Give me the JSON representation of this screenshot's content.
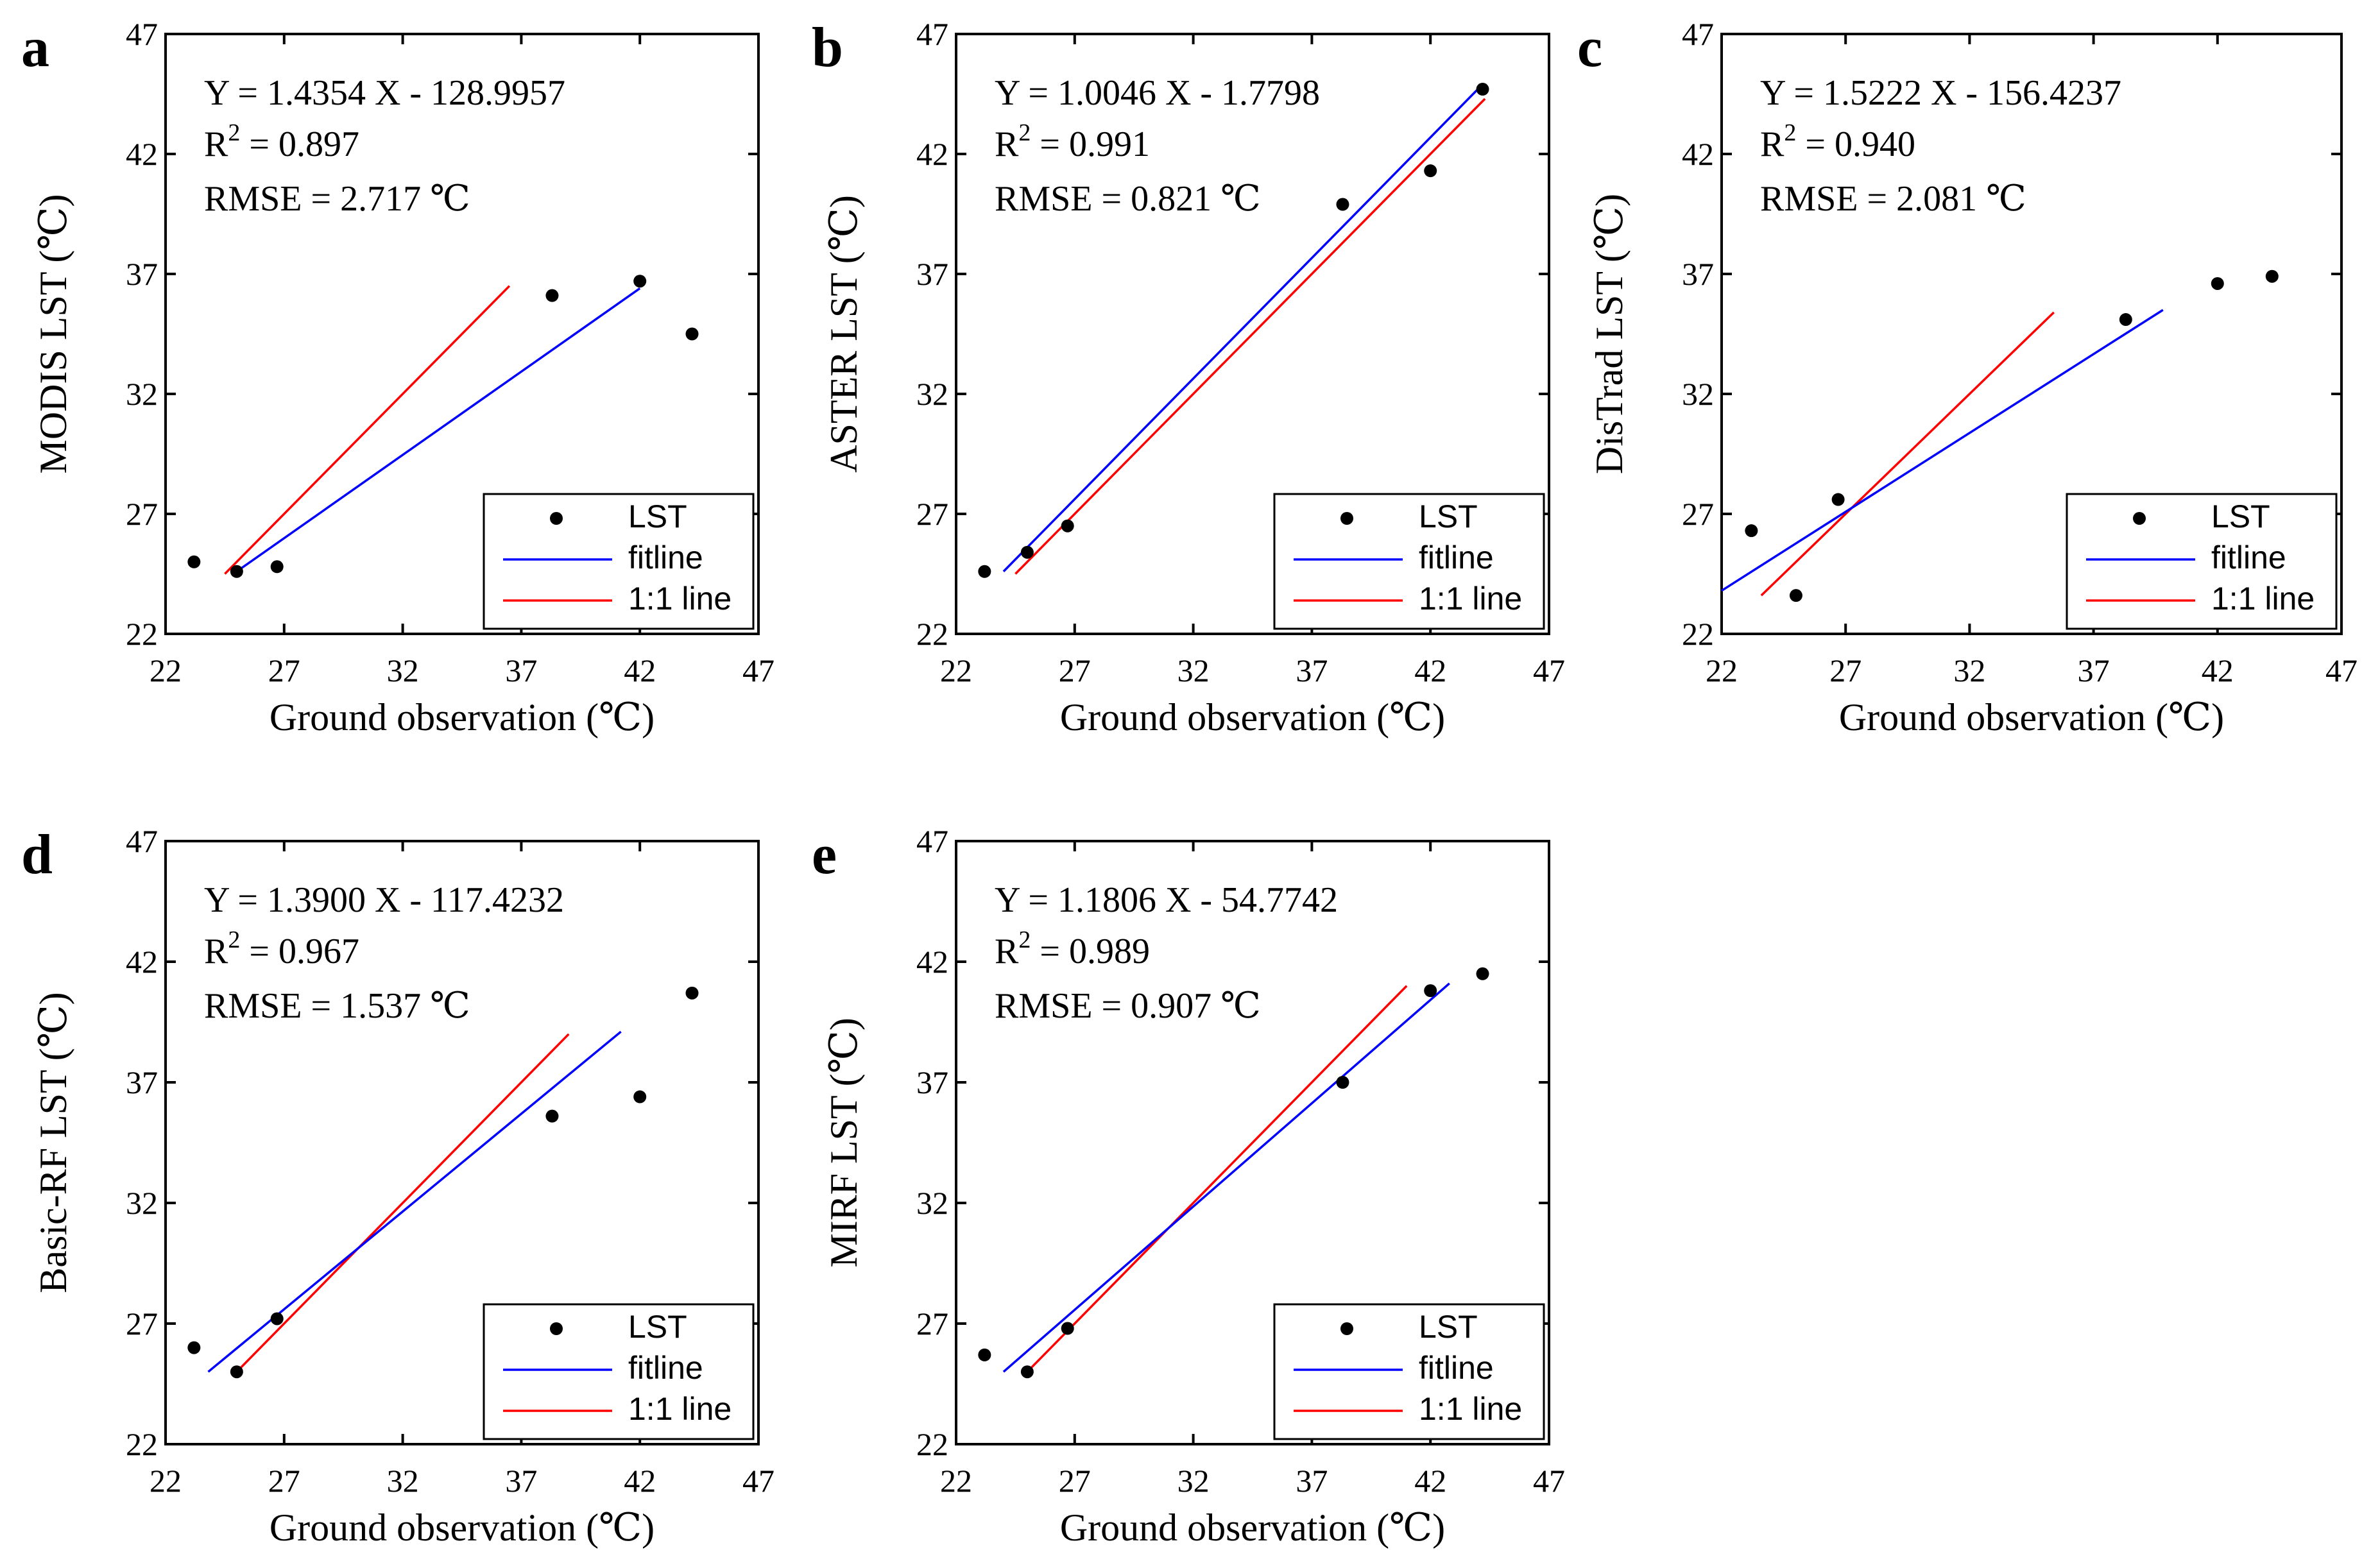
{
  "chart_data": [
    {
      "type": "scatter",
      "panel_label": "a",
      "xlabel": "Ground observation  (℃)",
      "ylabel": "MODIS LST  (℃)",
      "xlim": [
        22,
        47
      ],
      "ylim": [
        22,
        47
      ],
      "xticks": [
        22,
        27,
        32,
        37,
        42,
        47
      ],
      "yticks": [
        22,
        27,
        32,
        37,
        42,
        47
      ],
      "tick_labels": [
        "22",
        "27",
        "32",
        "37",
        "42",
        "47"
      ],
      "annotations": {
        "equation": "Y = 1.4354 X - 128.9957",
        "r2_label": "R",
        "r2_sup": "2",
        "r2_value": " = 0.897",
        "rmse": "RMSE = 2.717 ℃"
      },
      "points": [
        [
          23.2,
          25.0
        ],
        [
          25.0,
          24.6
        ],
        [
          26.7,
          24.8
        ],
        [
          38.3,
          36.1
        ],
        [
          42.0,
          36.7
        ],
        [
          44.2,
          34.5
        ]
      ],
      "fitline": [
        [
          25.0,
          24.6
        ],
        [
          42.0,
          36.4
        ]
      ],
      "one_to_one": [
        [
          24.5,
          24.5
        ],
        [
          36.5,
          36.5
        ]
      ],
      "legend": [
        "LST",
        "fitline",
        "1:1 line"
      ]
    },
    {
      "type": "scatter",
      "panel_label": "b",
      "xlabel": "Ground observation  (℃)",
      "ylabel": "ASTER LST  (℃)",
      "xlim": [
        22,
        47
      ],
      "ylim": [
        22,
        47
      ],
      "xticks": [
        22,
        27,
        32,
        37,
        42,
        47
      ],
      "yticks": [
        22,
        27,
        32,
        37,
        42,
        47
      ],
      "tick_labels": [
        "22",
        "27",
        "32",
        "37",
        "42",
        "47"
      ],
      "annotations": {
        "equation": "Y = 1.0046 X - 1.7798",
        "r2_label": "R",
        "r2_sup": "2",
        "r2_value": " = 0.991",
        "rmse": "RMSE = 0.821 ℃"
      },
      "points": [
        [
          23.2,
          24.6
        ],
        [
          25.0,
          25.4
        ],
        [
          26.7,
          26.5
        ],
        [
          38.3,
          39.9
        ],
        [
          42.0,
          41.3
        ],
        [
          44.2,
          44.7
        ]
      ],
      "fitline": [
        [
          24.0,
          24.6
        ],
        [
          44.0,
          44.7
        ]
      ],
      "one_to_one": [
        [
          24.5,
          24.5
        ],
        [
          44.3,
          44.3
        ]
      ],
      "legend": [
        "LST",
        "fitline",
        "1:1 line"
      ]
    },
    {
      "type": "scatter",
      "panel_label": "c",
      "xlabel": "Ground observation  (℃)",
      "ylabel": "DisTrad LST  (℃)",
      "xlim": [
        22,
        47
      ],
      "ylim": [
        22,
        47
      ],
      "xticks": [
        22,
        27,
        32,
        37,
        42,
        47
      ],
      "yticks": [
        22,
        27,
        32,
        37,
        42,
        47
      ],
      "tick_labels": [
        "22",
        "27",
        "32",
        "37",
        "42",
        "47"
      ],
      "annotations": {
        "equation": "Y = 1.5222 X - 156.4237",
        "r2_label": "R",
        "r2_sup": "2",
        "r2_value": " = 0.940",
        "rmse": "RMSE = 2.081 ℃"
      },
      "points": [
        [
          23.2,
          26.3
        ],
        [
          25.0,
          23.6
        ],
        [
          26.7,
          27.6
        ],
        [
          38.3,
          35.1
        ],
        [
          42.0,
          36.6
        ],
        [
          44.2,
          36.9
        ]
      ],
      "fitline": [
        [
          22.0,
          23.8
        ],
        [
          39.8,
          35.5
        ]
      ],
      "one_to_one": [
        [
          23.6,
          23.6
        ],
        [
          35.4,
          35.4
        ]
      ],
      "legend": [
        "LST",
        "fitline",
        "1:1 line"
      ]
    },
    {
      "type": "scatter",
      "panel_label": "d",
      "xlabel": "Ground observation  (℃)",
      "ylabel": "Basic-RF LST  (℃)",
      "xlim": [
        22,
        47
      ],
      "ylim": [
        22,
        47
      ],
      "xticks": [
        22,
        27,
        32,
        37,
        42,
        47
      ],
      "yticks": [
        22,
        27,
        32,
        37,
        42,
        47
      ],
      "tick_labels": [
        "22",
        "27",
        "32",
        "37",
        "42",
        "47"
      ],
      "annotations": {
        "equation": "Y = 1.3900 X - 117.4232",
        "r2_label": "R",
        "r2_sup": "2",
        "r2_value": " = 0.967",
        "rmse": "RMSE = 1.537 ℃"
      },
      "points": [
        [
          23.2,
          26.0
        ],
        [
          25.0,
          25.0
        ],
        [
          26.7,
          27.2
        ],
        [
          38.3,
          35.6
        ],
        [
          42.0,
          36.4
        ],
        [
          44.2,
          40.7
        ]
      ],
      "fitline": [
        [
          23.8,
          25.0
        ],
        [
          41.2,
          39.1
        ]
      ],
      "one_to_one": [
        [
          25.0,
          25.0
        ],
        [
          39.0,
          39.0
        ]
      ],
      "legend": [
        "LST",
        "fitline",
        "1:1 line"
      ]
    },
    {
      "type": "scatter",
      "panel_label": "e",
      "xlabel": "Ground observation  (℃)",
      "ylabel": "MIRF LST  (℃)",
      "xlim": [
        22,
        47
      ],
      "ylim": [
        22,
        47
      ],
      "xticks": [
        22,
        27,
        32,
        37,
        42,
        47
      ],
      "yticks": [
        22,
        27,
        32,
        37,
        42,
        47
      ],
      "tick_labels": [
        "22",
        "27",
        "32",
        "37",
        "42",
        "47"
      ],
      "annotations": {
        "equation": "Y = 1.1806 X - 54.7742",
        "r2_label": "R",
        "r2_sup": "2",
        "r2_value": " = 0.989",
        "rmse": "RMSE = 0.907 ℃"
      },
      "points": [
        [
          23.2,
          25.7
        ],
        [
          25.0,
          25.0
        ],
        [
          26.7,
          26.8
        ],
        [
          38.3,
          37.0
        ],
        [
          42.0,
          40.8
        ],
        [
          44.2,
          41.5
        ]
      ],
      "fitline": [
        [
          24.0,
          25.0
        ],
        [
          42.8,
          41.1
        ]
      ],
      "one_to_one": [
        [
          25.0,
          25.0
        ],
        [
          41.0,
          41.0
        ]
      ],
      "legend": [
        "LST",
        "fitline",
        "1:1 line"
      ]
    }
  ],
  "colors": {
    "points": "#000000",
    "fitline": "#0000ff",
    "one_to_one": "#ff0000",
    "axes": "#000000"
  }
}
